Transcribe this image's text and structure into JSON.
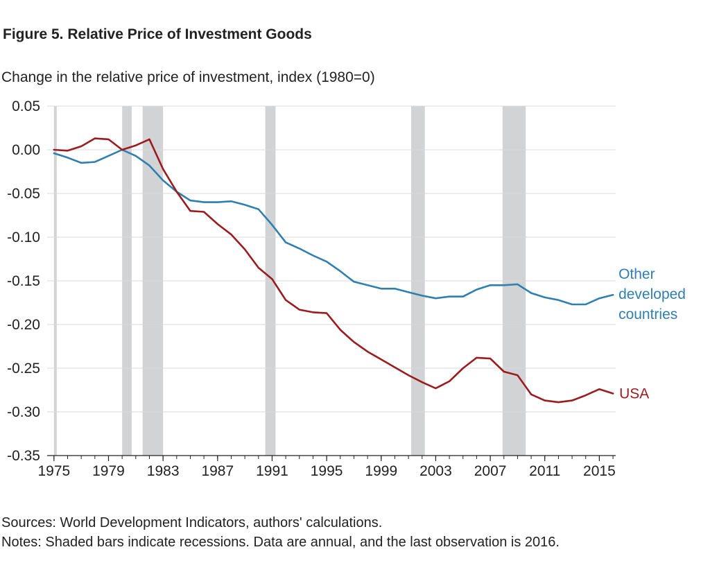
{
  "chart_data": {
    "type": "line",
    "title": "Figure 5. Relative Price of Investment Goods",
    "subtitle": "Change in the relative price of investment, index (1980=0)",
    "xlabel": "",
    "ylabel": "",
    "xlim": [
      1974.5,
      2016.2
    ],
    "ylim": [
      -0.35,
      0.05
    ],
    "x_ticks": [
      1975,
      1979,
      1983,
      1987,
      1991,
      1995,
      1999,
      2003,
      2007,
      2011,
      2015
    ],
    "y_ticks": [
      0.05,
      0.0,
      -0.05,
      -0.1,
      -0.15,
      -0.2,
      -0.25,
      -0.3,
      -0.35
    ],
    "y_tick_labels": [
      "0.05",
      "0.00",
      "-0.05",
      "-0.10",
      "-0.15",
      "-0.20",
      "-0.25",
      "-0.30",
      "-0.35"
    ],
    "grid": "horizontal",
    "recessions": [
      [
        1975.0,
        1975.2
      ],
      [
        1980.0,
        1980.7
      ],
      [
        1981.5,
        1983.0
      ],
      [
        1990.5,
        1991.25
      ],
      [
        2001.2,
        2002.2
      ],
      [
        2007.9,
        2009.6
      ]
    ],
    "x": [
      1975,
      1976,
      1977,
      1978,
      1979,
      1980,
      1981,
      1982,
      1983,
      1984,
      1985,
      1986,
      1987,
      1988,
      1989,
      1990,
      1991,
      1992,
      1993,
      1994,
      1995,
      1996,
      1997,
      1998,
      1999,
      2000,
      2001,
      2002,
      2003,
      2004,
      2005,
      2006,
      2007,
      2008,
      2009,
      2010,
      2011,
      2012,
      2013,
      2014,
      2015,
      2016
    ],
    "series": [
      {
        "name": "USA",
        "color": "#9b1c1f",
        "values": [
          0.0,
          -0.001,
          0.004,
          0.013,
          0.012,
          0.0,
          0.005,
          0.012,
          -0.022,
          -0.048,
          -0.07,
          -0.071,
          -0.085,
          -0.097,
          -0.114,
          -0.135,
          -0.148,
          -0.172,
          -0.183,
          -0.186,
          -0.187,
          -0.206,
          -0.22,
          -0.231,
          -0.24,
          -0.249,
          -0.258,
          -0.266,
          -0.273,
          -0.265,
          -0.25,
          -0.238,
          -0.239,
          -0.254,
          -0.258,
          -0.28,
          -0.287,
          -0.289,
          -0.287,
          -0.281,
          -0.274,
          -0.279
        ]
      },
      {
        "name": "Other developed countries",
        "label_lines": [
          "Other",
          "developed",
          "countries"
        ],
        "color": "#2f7faf",
        "values": [
          -0.004,
          -0.009,
          -0.015,
          -0.014,
          -0.007,
          0.0,
          -0.007,
          -0.018,
          -0.035,
          -0.048,
          -0.058,
          -0.06,
          -0.06,
          -0.059,
          -0.063,
          -0.068,
          -0.086,
          -0.106,
          -0.113,
          -0.121,
          -0.128,
          -0.139,
          -0.151,
          -0.155,
          -0.159,
          -0.159,
          -0.163,
          -0.167,
          -0.17,
          -0.168,
          -0.168,
          -0.16,
          -0.155,
          -0.155,
          -0.154,
          -0.164,
          -0.169,
          -0.172,
          -0.177,
          -0.177,
          -0.17,
          -0.166
        ]
      }
    ]
  },
  "notes": {
    "sources": "Sources: World Development Indicators, authors' calculations.",
    "notes": "Notes: Shaded bars indicate recessions. Data are annual, and the last observation is 2016."
  }
}
